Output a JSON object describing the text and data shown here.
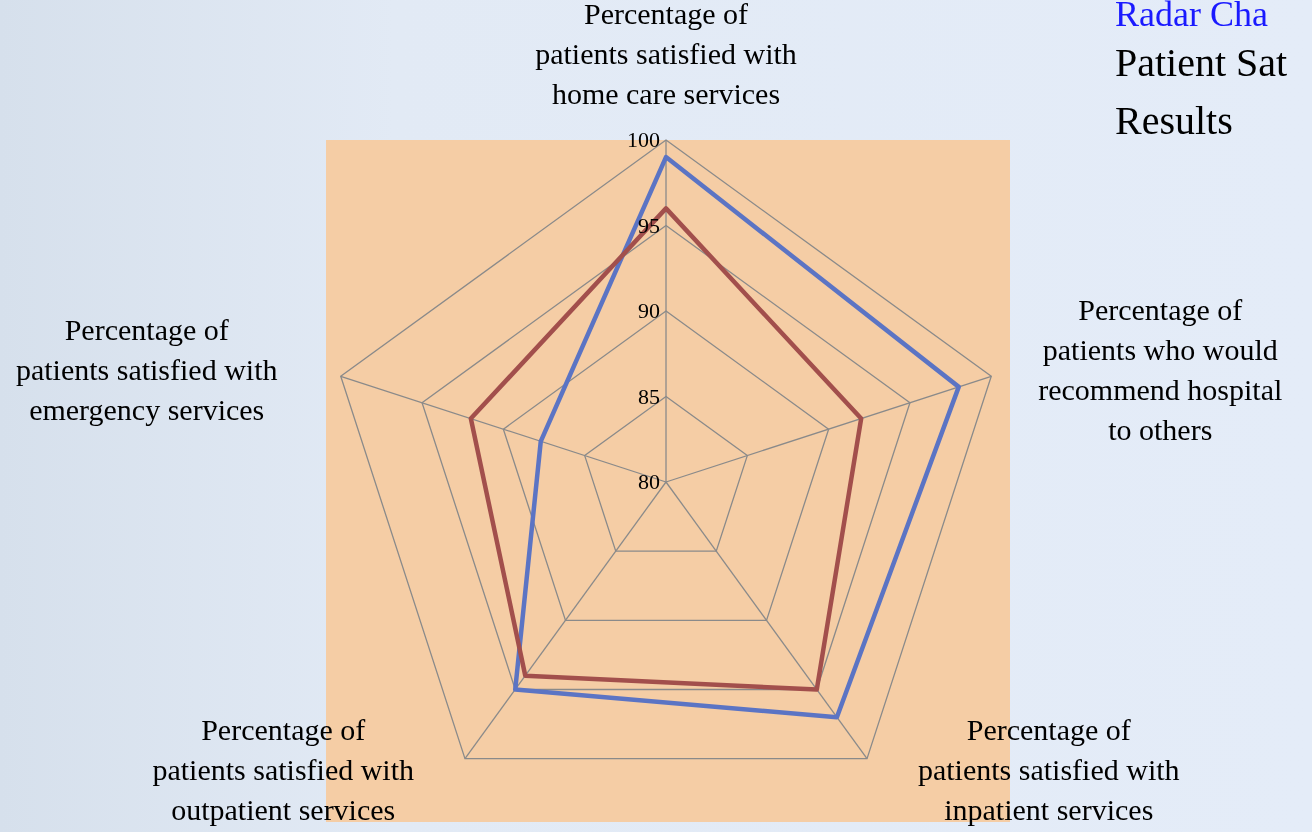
{
  "chart_data": {
    "type": "radar",
    "title": "Radar Cha",
    "subtitle": "Patient Sat\nResults",
    "categories": [
      "Percentage of\npatients satisfied with\nhome care services",
      "Percentage of\npatients who would\nrecommend hospital\nto others",
      "Percentage of\npatients satisfied with\ninpatient services",
      "Percentage of\npatients satisfied with\noutpatient services",
      "Percentage of\npatients satisfied with\nemergency services"
    ],
    "series": [
      {
        "color": "#5b74c4",
        "values": [
          99,
          98,
          97,
          95,
          87.7
        ]
      },
      {
        "color": "#a24f4c",
        "values": [
          96,
          92,
          95,
          94,
          92
        ]
      }
    ],
    "ylim": [
      80,
      100
    ],
    "yticks": [
      80,
      85,
      90,
      95,
      100
    ],
    "grid": true,
    "marker": "none",
    "line_style": "solid"
  }
}
